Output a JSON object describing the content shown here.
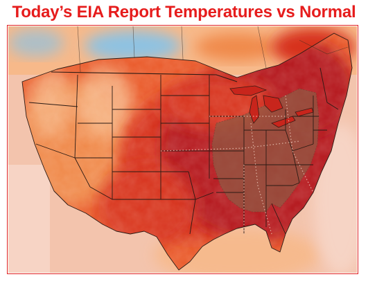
{
  "header": {
    "title": "Today’s EIA Report Temperatures vs Normal",
    "title_color": "#e61c1c"
  },
  "frame": {
    "border_color": "#e02020"
  },
  "map": {
    "region": "contiguous-united-states",
    "overlay": "temperature-anomaly-shading",
    "colors": {
      "deep_red": "#b4161a",
      "red": "#d7301f",
      "orange_red": "#ea5a2a",
      "orange": "#f08a4b",
      "light_orange": "#f7b98a",
      "cool_blue": "#8ec2e2",
      "brown_overlay": "#8f5a44",
      "water_pale": "#f7d6c8"
    }
  }
}
